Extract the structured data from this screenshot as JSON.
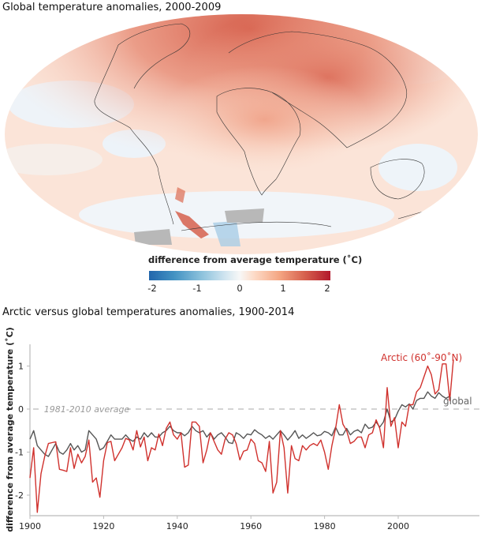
{
  "map": {
    "title": "Global temperature anomalies, 2000-2009",
    "colorbar": {
      "label": "difference from average temperature (˚C)",
      "ticks": [
        "-2",
        "-1",
        "0",
        "1",
        "2"
      ],
      "colors": [
        "#2166ac",
        "#4393c3",
        "#92c5de",
        "#d1e5f0",
        "#f7f7f7",
        "#fddbc7",
        "#f4a582",
        "#d6604d",
        "#b2182b"
      ],
      "no_data_color": "#b8b8b8"
    }
  },
  "chart_data": {
    "type": "line",
    "title": "Arctic versus global temperatures anomalies, 1900-2014",
    "xlabel": "",
    "ylabel": "difference from average temperature (˚C)",
    "xlim": [
      1900,
      2014
    ],
    "ylim": [
      -2.5,
      1.5
    ],
    "xticks": [
      1900,
      1920,
      1940,
      1960,
      1980,
      2000
    ],
    "yticks": [
      1,
      0,
      -1,
      -2
    ],
    "grid": false,
    "reference_line": {
      "y": 0,
      "label": "1981-2010 average",
      "style": "dashed",
      "color": "#bbbbbb"
    },
    "x_start": 1900,
    "series": [
      {
        "name": "Arctic (60˚-90˚N)",
        "color": "#d0312d",
        "values": [
          -1.6,
          -0.9,
          -2.4,
          -1.5,
          -1.1,
          -0.8,
          -0.78,
          -0.76,
          -1.4,
          -1.42,
          -1.45,
          -0.9,
          -1.38,
          -1.05,
          -1.25,
          -1.1,
          -0.72,
          -1.7,
          -1.6,
          -2.05,
          -1.2,
          -0.78,
          -0.75,
          -1.2,
          -1.05,
          -0.9,
          -0.68,
          -0.72,
          -0.95,
          -0.5,
          -0.88,
          -0.65,
          -1.2,
          -0.9,
          -0.95,
          -0.58,
          -0.85,
          -0.45,
          -0.3,
          -0.6,
          -0.7,
          -0.55,
          -1.35,
          -1.3,
          -0.3,
          -0.3,
          -0.4,
          -1.25,
          -0.95,
          -0.55,
          -0.75,
          -0.95,
          -1.05,
          -0.7,
          -0.55,
          -0.6,
          -0.8,
          -1.18,
          -0.98,
          -0.95,
          -0.7,
          -0.8,
          -1.2,
          -1.25,
          -1.45,
          -0.75,
          -1.95,
          -1.7,
          -0.5,
          -0.9,
          -1.95,
          -0.85,
          -1.15,
          -1.2,
          -0.85,
          -0.95,
          -0.85,
          -0.8,
          -0.85,
          -0.72,
          -1.0,
          -1.4,
          -0.85,
          -0.45,
          0.1,
          -0.35,
          -0.5,
          -0.8,
          -0.75,
          -0.65,
          -0.65,
          -0.9,
          -0.6,
          -0.55,
          -0.25,
          -0.45,
          -0.9,
          0.5,
          -0.4,
          -0.2,
          -0.9,
          -0.3,
          -0.4,
          0.1,
          0.1,
          0.4,
          0.5,
          0.75,
          1.0,
          0.8,
          0.35,
          0.45,
          1.05,
          1.05,
          0.2,
          1.15
        ]
      },
      {
        "name": "global",
        "color": "#555555",
        "values": [
          -0.7,
          -0.5,
          -0.85,
          -0.95,
          -1.05,
          -1.1,
          -0.95,
          -0.8,
          -1.0,
          -1.05,
          -0.95,
          -0.8,
          -0.95,
          -0.85,
          -1.0,
          -0.95,
          -0.5,
          -0.6,
          -0.7,
          -0.95,
          -0.9,
          -0.75,
          -0.6,
          -0.7,
          -0.7,
          -0.7,
          -0.6,
          -0.7,
          -0.75,
          -0.65,
          -0.7,
          -0.55,
          -0.65,
          -0.55,
          -0.65,
          -0.65,
          -0.55,
          -0.5,
          -0.4,
          -0.5,
          -0.55,
          -0.55,
          -0.62,
          -0.55,
          -0.4,
          -0.5,
          -0.55,
          -0.5,
          -0.65,
          -0.55,
          -0.7,
          -0.6,
          -0.55,
          -0.65,
          -0.78,
          -0.8,
          -0.55,
          -0.6,
          -0.68,
          -0.58,
          -0.6,
          -0.48,
          -0.55,
          -0.6,
          -0.68,
          -0.62,
          -0.7,
          -0.6,
          -0.5,
          -0.6,
          -0.72,
          -0.62,
          -0.5,
          -0.68,
          -0.6,
          -0.68,
          -0.62,
          -0.55,
          -0.62,
          -0.6,
          -0.52,
          -0.55,
          -0.62,
          -0.42,
          -0.6,
          -0.6,
          -0.45,
          -0.6,
          -0.52,
          -0.48,
          -0.55,
          -0.35,
          -0.45,
          -0.42,
          -0.3,
          -0.42,
          -0.3,
          0.0,
          -0.3,
          -0.25,
          -0.05,
          0.1,
          0.05,
          0.12,
          0.0,
          0.2,
          0.25,
          0.25,
          0.4,
          0.3,
          0.25,
          0.38,
          0.3,
          0.25,
          0.3
        ]
      }
    ],
    "annotations": [
      {
        "text": "Arctic (60˚-90˚N)",
        "color": "#d0312d"
      },
      {
        "text": "global",
        "color": "#666666"
      },
      {
        "text": "1981-2010 average",
        "color": "#999999"
      }
    ]
  }
}
